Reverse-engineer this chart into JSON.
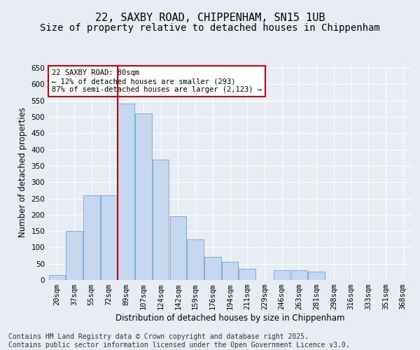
{
  "title_line1": "22, SAXBY ROAD, CHIPPENHAM, SN15 1UB",
  "title_line2": "Size of property relative to detached houses in Chippenham",
  "xlabel": "Distribution of detached houses by size in Chippenham",
  "ylabel": "Number of detached properties",
  "categories": [
    "20sqm",
    "37sqm",
    "55sqm",
    "72sqm",
    "89sqm",
    "107sqm",
    "124sqm",
    "142sqm",
    "159sqm",
    "176sqm",
    "194sqm",
    "211sqm",
    "229sqm",
    "246sqm",
    "263sqm",
    "281sqm",
    "298sqm",
    "316sqm",
    "333sqm",
    "351sqm",
    "368sqm"
  ],
  "values": [
    15,
    150,
    260,
    260,
    540,
    510,
    370,
    195,
    125,
    70,
    55,
    35,
    0,
    30,
    30,
    25,
    0,
    0,
    0,
    0,
    0
  ],
  "bar_color": "#c5d8f0",
  "bar_edge_color": "#7bafd4",
  "vline_color": "#cc0000",
  "vline_pos": 3.5,
  "annotation_text": "22 SAXBY ROAD: 80sqm\n← 12% of detached houses are smaller (293)\n87% of semi-detached houses are larger (2,123) →",
  "annotation_box_color": "#ffffff",
  "annotation_border_color": "#cc0000",
  "ylim": [
    0,
    660
  ],
  "yticks": [
    0,
    50,
    100,
    150,
    200,
    250,
    300,
    350,
    400,
    450,
    500,
    550,
    600,
    650
  ],
  "footer_text": "Contains HM Land Registry data © Crown copyright and database right 2025.\nContains public sector information licensed under the Open Government Licence v3.0.",
  "bg_color": "#e8edf5",
  "plot_bg_color": "#e8edf5",
  "grid_color": "#ffffff",
  "title_fontsize": 11,
  "subtitle_fontsize": 10,
  "tick_fontsize": 7.5,
  "label_fontsize": 8.5,
  "footer_fontsize": 7,
  "annot_fontsize": 7.5
}
